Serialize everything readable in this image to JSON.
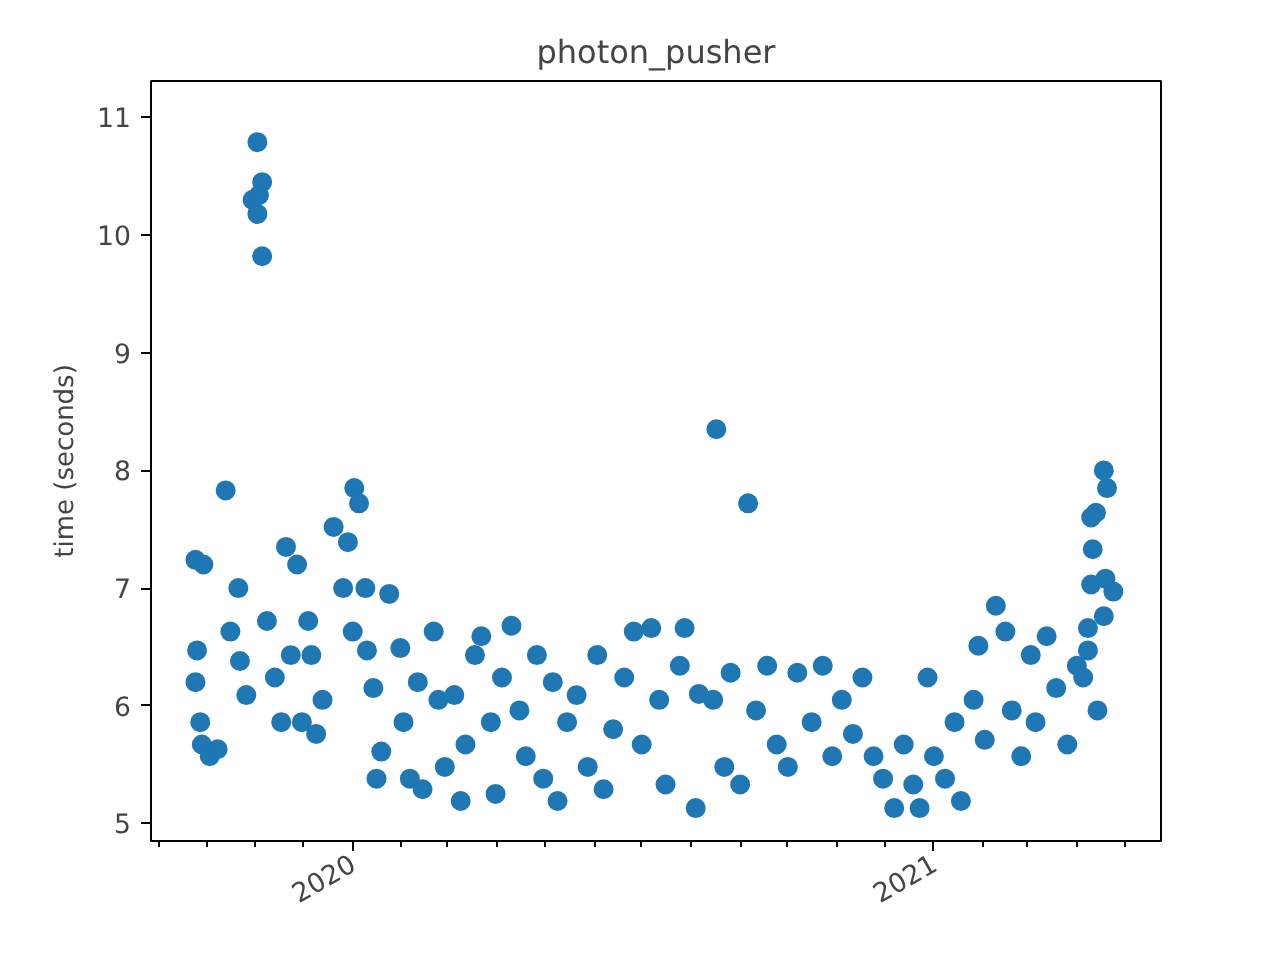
{
  "chart_data": {
    "type": "scatter",
    "title": "photon_pusher",
    "ylabel": "time (seconds)",
    "marker": "circle",
    "grid": false,
    "xlim": [
      "2019-08-27",
      "2021-05-24"
    ],
    "ylim": [
      4.85,
      11.31
    ],
    "yticks": [
      5,
      6,
      7,
      8,
      9,
      10,
      11
    ],
    "xticks": [
      {
        "value": "2019-09-01",
        "label": null
      },
      {
        "value": "2019-10-01",
        "label": null
      },
      {
        "value": "2019-11-01",
        "label": null
      },
      {
        "value": "2019-12-01",
        "label": null
      },
      {
        "value": "2020-01-01",
        "label": "2020"
      },
      {
        "value": "2020-02-01",
        "label": null
      },
      {
        "value": "2020-03-01",
        "label": null
      },
      {
        "value": "2020-04-01",
        "label": null
      },
      {
        "value": "2020-05-01",
        "label": null
      },
      {
        "value": "2020-06-01",
        "label": null
      },
      {
        "value": "2020-07-01",
        "label": null
      },
      {
        "value": "2020-08-01",
        "label": null
      },
      {
        "value": "2020-09-01",
        "label": null
      },
      {
        "value": "2020-10-01",
        "label": null
      },
      {
        "value": "2020-11-01",
        "label": null
      },
      {
        "value": "2020-12-01",
        "label": null
      },
      {
        "value": "2021-01-01",
        "label": "2021"
      },
      {
        "value": "2021-02-01",
        "label": null
      },
      {
        "value": "2021-03-01",
        "label": null
      },
      {
        "value": "2021-04-01",
        "label": null
      },
      {
        "value": "2021-05-01",
        "label": null
      }
    ],
    "series": [
      {
        "color": "#1f77b4",
        "x": [
          "2019-09-24",
          "2019-09-29",
          "2019-09-25",
          "2019-09-24",
          "2019-09-27",
          "2019-09-28",
          "2019-10-03",
          "2019-10-08",
          "2019-10-13",
          "2019-10-21",
          "2019-10-16",
          "2019-10-22",
          "2019-10-26",
          "2019-11-02",
          "2019-11-05",
          "2019-10-30",
          "2019-11-02",
          "2019-11-05",
          "2019-11-03",
          "2019-11-08",
          "2019-11-13",
          "2019-11-17",
          "2019-11-20",
          "2019-11-23",
          "2019-11-27",
          "2019-11-30",
          "2019-12-04",
          "2019-12-06",
          "2019-12-09",
          "2019-12-13",
          "2019-12-20",
          "2019-12-26",
          "2019-12-29",
          "2020-01-02",
          "2020-01-05",
          "2020-01-10",
          "2020-01-01",
          "2020-01-09",
          "2020-01-14",
          "2020-01-16",
          "2020-01-19",
          "2020-01-24",
          "2020-01-31",
          "2020-02-02",
          "2020-02-06",
          "2020-02-11",
          "2020-02-14",
          "2020-02-21",
          "2020-02-24",
          "2020-02-28",
          "2020-03-05",
          "2020-03-09",
          "2020-03-12",
          "2020-03-18",
          "2020-03-22",
          "2020-03-28",
          "2020-03-31",
          "2020-04-04",
          "2020-04-10",
          "2020-04-15",
          "2020-04-19",
          "2020-04-26",
          "2020-04-30",
          "2020-05-06",
          "2020-05-09",
          "2020-05-15",
          "2020-05-21",
          "2020-05-28",
          "2020-06-03",
          "2020-06-07",
          "2020-06-13",
          "2020-06-20",
          "2020-06-26",
          "2020-07-01",
          "2020-07-07",
          "2020-07-12",
          "2020-07-16",
          "2020-08-17",
          "2020-09-06",
          "2020-07-28",
          "2020-08-04",
          "2020-07-25",
          "2020-08-06",
          "2020-08-15",
          "2020-08-22",
          "2020-08-26",
          "2020-09-01",
          "2020-09-11",
          "2020-09-18",
          "2020-09-24",
          "2020-10-01",
          "2020-10-07",
          "2020-10-16",
          "2020-10-23",
          "2020-10-29",
          "2020-11-04",
          "2020-11-11",
          "2020-11-17",
          "2020-11-24",
          "2020-11-30",
          "2020-12-07",
          "2020-12-13",
          "2020-12-19",
          "2020-12-23",
          "2020-12-28",
          "2021-01-01",
          "2021-01-08",
          "2021-01-14",
          "2021-01-18",
          "2021-01-26",
          "2021-01-29",
          "2021-02-02",
          "2021-02-09",
          "2021-02-15",
          "2021-02-19",
          "2021-02-25",
          "2021-03-03",
          "2021-03-06",
          "2021-03-13",
          "2021-03-19",
          "2021-03-26",
          "2021-04-01",
          "2021-04-05",
          "2021-04-08",
          "2021-04-14",
          "2021-04-11",
          "2021-04-13",
          "2021-04-18",
          "2021-04-20",
          "2021-04-10",
          "2021-04-10",
          "2021-04-19",
          "2021-04-24",
          "2021-04-18",
          "2021-04-08"
        ],
        "values": [
          7.24,
          7.2,
          6.47,
          6.2,
          5.86,
          5.67,
          5.57,
          5.63,
          7.83,
          7.0,
          6.63,
          6.38,
          6.09,
          10.79,
          10.45,
          10.3,
          10.18,
          9.82,
          10.34,
          6.72,
          6.24,
          5.86,
          7.35,
          6.43,
          7.2,
          5.86,
          6.72,
          6.43,
          5.76,
          6.05,
          7.52,
          7.0,
          7.39,
          7.85,
          7.72,
          6.47,
          6.63,
          7.0,
          6.15,
          5.38,
          5.61,
          6.95,
          6.49,
          5.86,
          5.38,
          6.2,
          5.29,
          6.63,
          6.05,
          5.48,
          6.09,
          5.19,
          5.67,
          6.43,
          6.59,
          5.86,
          5.25,
          6.24,
          6.68,
          5.96,
          5.57,
          6.43,
          5.38,
          6.2,
          5.19,
          5.86,
          6.09,
          5.48,
          6.43,
          5.29,
          5.8,
          6.24,
          6.63,
          5.67,
          6.66,
          6.05,
          5.33,
          8.35,
          7.72,
          6.66,
          5.13,
          6.34,
          6.1,
          6.05,
          5.48,
          6.28,
          5.33,
          5.96,
          6.34,
          5.67,
          5.48,
          6.28,
          5.86,
          6.34,
          5.57,
          6.05,
          5.76,
          6.24,
          5.57,
          5.38,
          5.13,
          5.67,
          5.33,
          5.13,
          6.24,
          5.57,
          5.38,
          5.86,
          5.19,
          6.05,
          6.51,
          5.71,
          6.85,
          6.63,
          5.96,
          5.57,
          6.43,
          5.86,
          6.59,
          6.15,
          5.67,
          6.34,
          6.24,
          6.66,
          5.96,
          7.33,
          7.64,
          8.0,
          7.85,
          7.6,
          7.03,
          7.08,
          6.97,
          6.76,
          6.47
        ]
      }
    ]
  }
}
